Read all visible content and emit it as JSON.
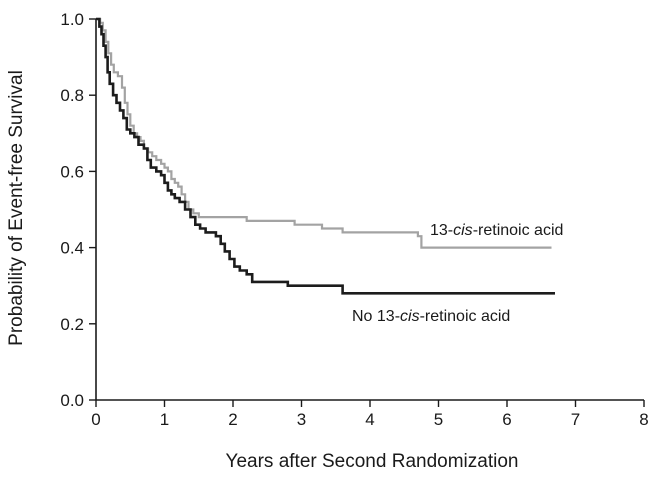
{
  "chart_data": {
    "type": "line",
    "step": true,
    "xlabel": "Years after Second Randomization",
    "ylabel": "Probability of Event-free Survival",
    "xlim": [
      0,
      8
    ],
    "ylim": [
      0,
      1.0
    ],
    "xticks": [
      0,
      1,
      2,
      3,
      4,
      5,
      6,
      7,
      8
    ],
    "xtick_labels": [
      "0",
      "1",
      "2",
      "3",
      "4",
      "5",
      "6",
      "7",
      "8"
    ],
    "yticks": [
      0,
      0.2,
      0.4,
      0.6,
      0.8,
      1.0
    ],
    "ytick_labels": [
      "0.0",
      "0.2",
      "0.4",
      "0.6",
      "0.8",
      "1.0"
    ],
    "grid": false,
    "series": [
      {
        "name_parts": [
          "13-",
          "cis",
          "-retinoic acid"
        ],
        "color": "#a3a3a3",
        "points": [
          [
            0,
            1.0
          ],
          [
            0.06,
            0.99
          ],
          [
            0.1,
            0.97
          ],
          [
            0.14,
            0.94
          ],
          [
            0.18,
            0.91
          ],
          [
            0.22,
            0.88
          ],
          [
            0.26,
            0.86
          ],
          [
            0.32,
            0.85
          ],
          [
            0.38,
            0.82
          ],
          [
            0.42,
            0.78
          ],
          [
            0.46,
            0.75
          ],
          [
            0.5,
            0.72
          ],
          [
            0.55,
            0.7
          ],
          [
            0.6,
            0.69
          ],
          [
            0.65,
            0.68
          ],
          [
            0.7,
            0.66
          ],
          [
            0.76,
            0.65
          ],
          [
            0.82,
            0.64
          ],
          [
            0.88,
            0.63
          ],
          [
            0.95,
            0.62
          ],
          [
            1.0,
            0.61
          ],
          [
            1.05,
            0.6
          ],
          [
            1.1,
            0.58
          ],
          [
            1.15,
            0.57
          ],
          [
            1.2,
            0.56
          ],
          [
            1.25,
            0.54
          ],
          [
            1.3,
            0.52
          ],
          [
            1.35,
            0.5
          ],
          [
            1.42,
            0.49
          ],
          [
            1.5,
            0.48
          ],
          [
            1.9,
            0.48
          ],
          [
            2.0,
            0.48
          ],
          [
            2.2,
            0.47
          ],
          [
            2.5,
            0.47
          ],
          [
            2.9,
            0.46
          ],
          [
            3.0,
            0.46
          ],
          [
            3.3,
            0.45
          ],
          [
            3.6,
            0.44
          ],
          [
            4.2,
            0.44
          ],
          [
            4.7,
            0.43
          ],
          [
            4.75,
            0.4
          ],
          [
            5.5,
            0.4
          ],
          [
            6.2,
            0.4
          ],
          [
            6.65,
            0.4
          ]
        ]
      },
      {
        "name_parts": [
          "No 13-",
          "cis",
          "-retinoic acid"
        ],
        "color": "#1c1c1c",
        "points": [
          [
            0,
            1.0
          ],
          [
            0.05,
            0.98
          ],
          [
            0.08,
            0.96
          ],
          [
            0.11,
            0.93
          ],
          [
            0.14,
            0.9
          ],
          [
            0.17,
            0.86
          ],
          [
            0.2,
            0.83
          ],
          [
            0.25,
            0.8
          ],
          [
            0.3,
            0.78
          ],
          [
            0.35,
            0.76
          ],
          [
            0.4,
            0.74
          ],
          [
            0.45,
            0.71
          ],
          [
            0.5,
            0.7
          ],
          [
            0.56,
            0.69
          ],
          [
            0.62,
            0.67
          ],
          [
            0.7,
            0.66
          ],
          [
            0.75,
            0.63
          ],
          [
            0.8,
            0.61
          ],
          [
            0.88,
            0.6
          ],
          [
            0.95,
            0.59
          ],
          [
            1.0,
            0.57
          ],
          [
            1.05,
            0.55
          ],
          [
            1.1,
            0.54
          ],
          [
            1.15,
            0.53
          ],
          [
            1.22,
            0.52
          ],
          [
            1.3,
            0.5
          ],
          [
            1.38,
            0.48
          ],
          [
            1.45,
            0.46
          ],
          [
            1.52,
            0.45
          ],
          [
            1.6,
            0.44
          ],
          [
            1.75,
            0.43
          ],
          [
            1.82,
            0.41
          ],
          [
            1.88,
            0.39
          ],
          [
            1.95,
            0.37
          ],
          [
            2.02,
            0.35
          ],
          [
            2.1,
            0.34
          ],
          [
            2.2,
            0.33
          ],
          [
            2.28,
            0.31
          ],
          [
            2.5,
            0.31
          ],
          [
            2.8,
            0.3
          ],
          [
            3.1,
            0.3
          ],
          [
            3.6,
            0.28
          ],
          [
            4.5,
            0.28
          ],
          [
            5.5,
            0.28
          ],
          [
            6.7,
            0.28
          ]
        ]
      }
    ]
  }
}
